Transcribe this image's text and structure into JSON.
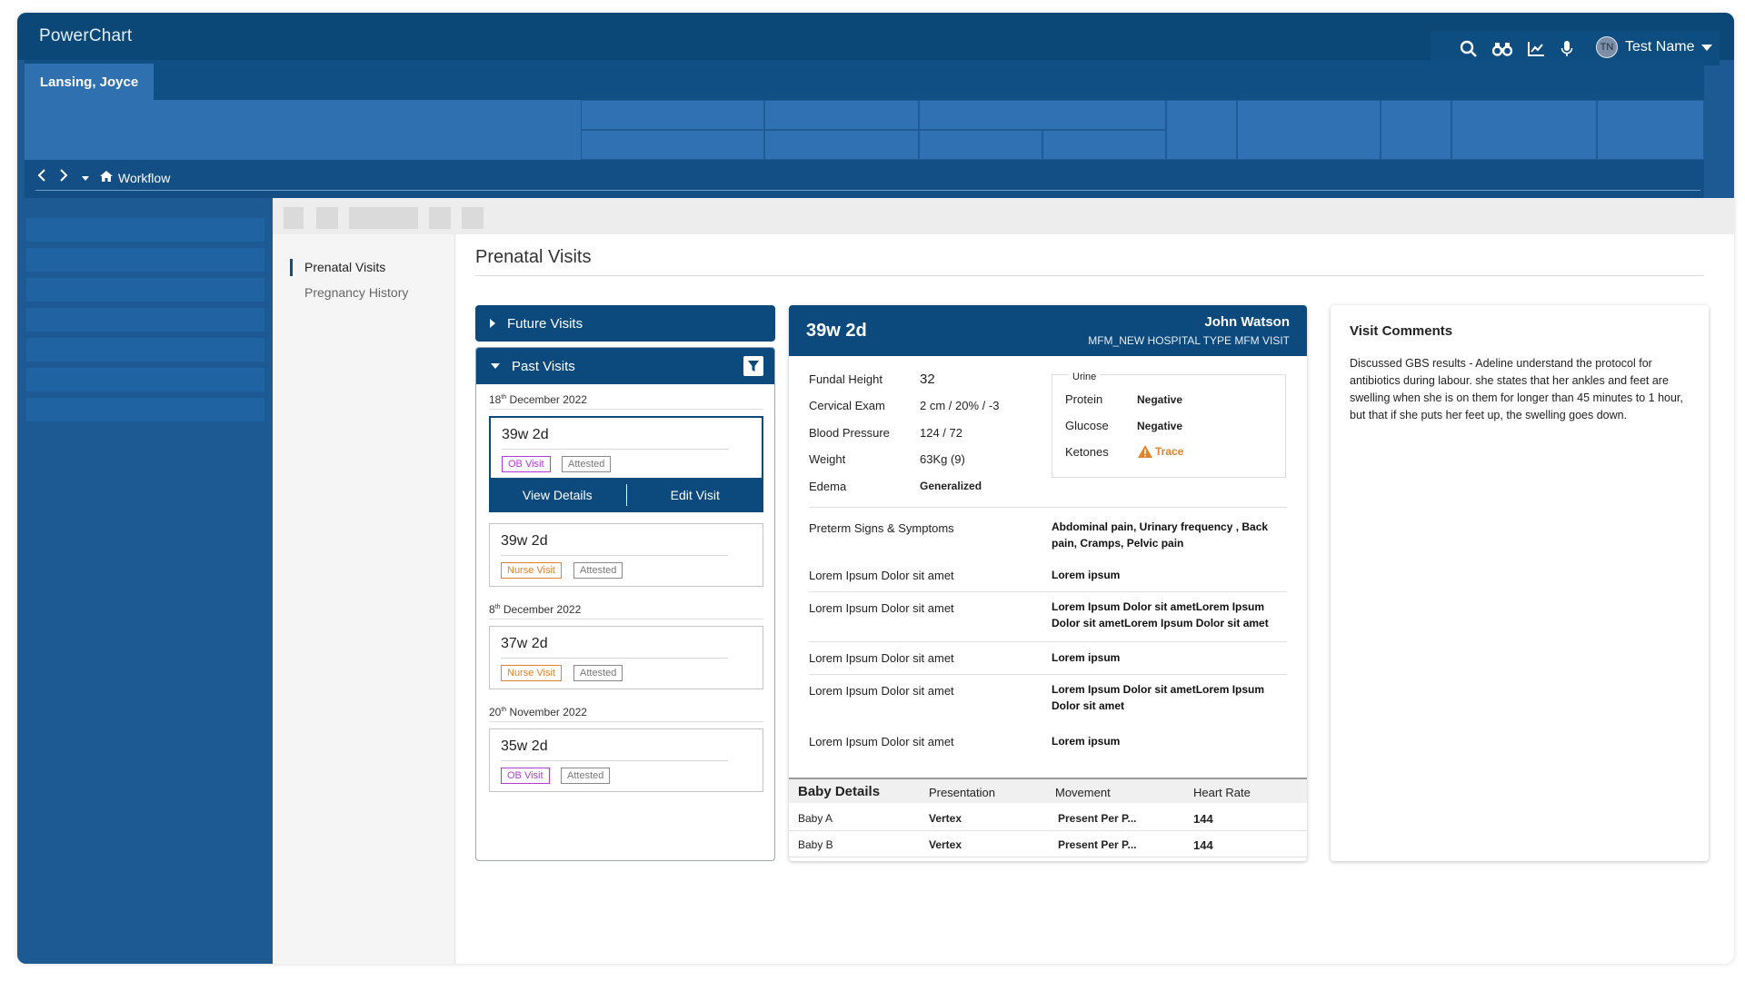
{
  "app": {
    "title": "PowerChart"
  },
  "user": {
    "initials": "TN",
    "name": "Test Name"
  },
  "patient_tab": {
    "label": "Lansing, Joyce"
  },
  "breadcrumb": {
    "label": "Workflow"
  },
  "subnav": {
    "items": [
      {
        "label": "Prenatal Visits",
        "active": true
      },
      {
        "label": "Pregnancy History",
        "active": false
      }
    ]
  },
  "page": {
    "title": "Prenatal Visits"
  },
  "future_visits": {
    "label": "Future Visits"
  },
  "past_visits": {
    "label": "Past Visits",
    "groups": [
      {
        "date_day": "18",
        "date_suffix": "th",
        "date_rest": " December 2022",
        "visits": [
          {
            "ga": "39w 2d",
            "type": "OB Visit",
            "status": "Attested",
            "view_label": "View Details",
            "edit_label": "Edit Visit"
          },
          {
            "ga": "39w 2d",
            "type": "Nurse Visit",
            "status": "Attested"
          }
        ]
      },
      {
        "date_day": "8",
        "date_suffix": "th",
        "date_rest": " December 2022",
        "visits": [
          {
            "ga": "37w 2d",
            "type": "Nurse Visit",
            "status": "Attested"
          }
        ]
      },
      {
        "date_day": "20",
        "date_suffix": "th",
        "date_rest": " November 2022",
        "visits": [
          {
            "ga": "35w 2d",
            "type": "OB Visit",
            "status": "Attested"
          }
        ]
      }
    ]
  },
  "detail": {
    "ga": "39w 2d",
    "provider": "John Watson",
    "visit_type": "MFM_NEW HOSPITAL TYPE MFM VISIT",
    "vitals": [
      {
        "label": "Fundal Height",
        "value": "32"
      },
      {
        "label": "Cervical Exam",
        "value": "2  cm / 20% / -3"
      },
      {
        "label": "Blood Pressure",
        "value": "124 / 72"
      },
      {
        "label": "Weight",
        "value": "63Kg (9)"
      },
      {
        "label": "Edema",
        "value": "Generalized"
      }
    ],
    "urine": {
      "title": "Urine",
      "rows": [
        {
          "label": "Protein",
          "value": "Negative"
        },
        {
          "label": "Glucose",
          "value": "Negative"
        },
        {
          "label": "Ketones",
          "value": "Trace"
        }
      ]
    },
    "symptoms": [
      {
        "label": "Preterm Signs &  Symptoms",
        "value": "Abdominal pain,  Urinary frequency , Back pain, Cramps,  Pelvic pain"
      },
      {
        "label": "Lorem Ipsum Dolor sit amet",
        "value": "Lorem ipsum"
      },
      {
        "label": "Lorem Ipsum Dolor sit amet",
        "value": "Lorem Ipsum Dolor sit ametLorem Ipsum Dolor sit ametLorem Ipsum Dolor sit amet"
      },
      {
        "label": "Lorem Ipsum Dolor sit amet",
        "value": "Lorem ipsum"
      },
      {
        "label": "Lorem Ipsum Dolor sit amet",
        "value": "Lorem Ipsum Dolor sit ametLorem Ipsum Dolor sit amet"
      },
      {
        "label": "Lorem Ipsum Dolor sit amet",
        "value": "Lorem ipsum"
      }
    ],
    "baby": {
      "headers": [
        "Baby Details",
        "Presentation",
        "Movement",
        "Heart Rate"
      ],
      "rows": [
        {
          "name": "Baby A",
          "presentation": "Vertex",
          "movement": "Present Per P...",
          "heart_rate": "144"
        },
        {
          "name": "Baby B",
          "presentation": "Vertex",
          "movement": "Present Per P...",
          "heart_rate": "144"
        }
      ]
    }
  },
  "comments": {
    "title": "Visit Comments",
    "body": "Discussed GBS results - Adeline understand the protocol for antibiotics during labour. she states that her ankles and feet are swelling when she is on them for longer than 45 minutes to 1 hour, but that if she puts her feet up, the swelling goes down."
  },
  "icons": {
    "search": "search-icon",
    "binoculars": "binoculars-icon",
    "chart": "chart-icon",
    "mic": "microphone-icon",
    "home": "home-icon",
    "filter": "filter-icon",
    "warning": "warning-icon"
  },
  "colors": {
    "brand": "#0c4a7e",
    "ob_tag": "#b13ad6",
    "nurse_tag": "#e3812a",
    "trace": "#e3812a"
  }
}
